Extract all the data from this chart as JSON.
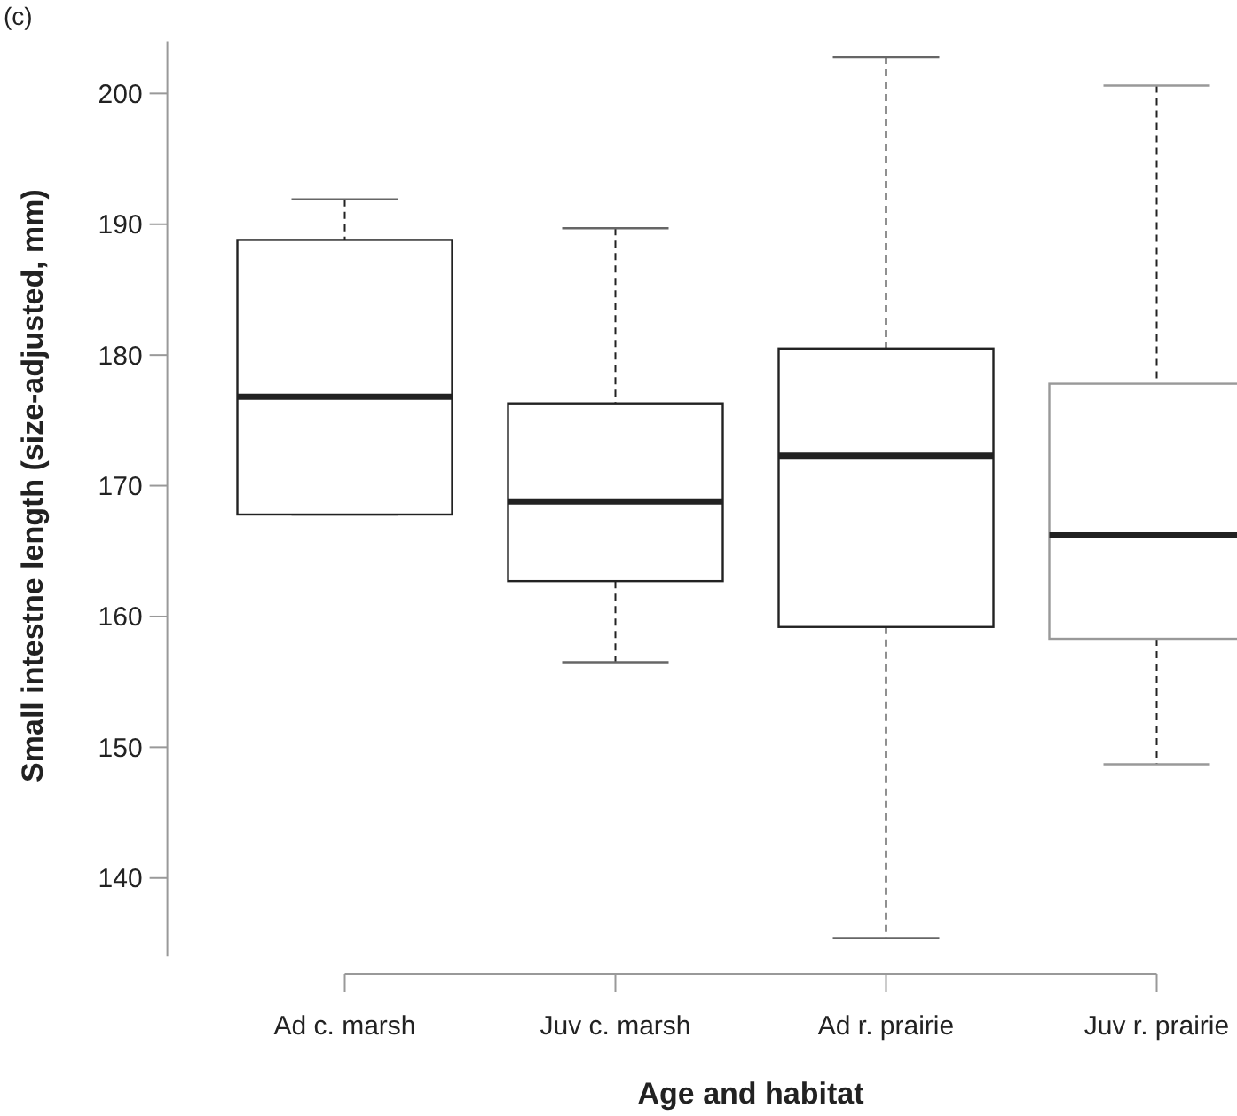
{
  "chart_data": {
    "type": "box",
    "xlabel": "Age and habitat",
    "ylabel": "Small intestne length (size-adjusted, mm)",
    "annotations": [
      "(c)"
    ],
    "categories": [
      "Ad c. marsh",
      "Juv c. marsh",
      "Ad r. prairie",
      "Juv r. prairie"
    ],
    "colors": [
      "#222222",
      "#222222",
      "#222222",
      "#999999"
    ],
    "boxes": [
      {
        "low": 167.8,
        "q1": 167.8,
        "median": 176.8,
        "q3": 188.8,
        "high": 191.9
      },
      {
        "low": 156.5,
        "q1": 162.7,
        "median": 168.8,
        "q3": 176.3,
        "high": 189.7
      },
      {
        "low": 135.4,
        "q1": 159.2,
        "median": 172.3,
        "q3": 180.5,
        "high": 202.8
      },
      {
        "low": 148.7,
        "q1": 158.3,
        "median": 166.2,
        "q3": 177.8,
        "high": 200.6
      }
    ],
    "ylim": [
      134,
      204
    ],
    "yticks": [
      140,
      150,
      160,
      170,
      180,
      190,
      200
    ],
    "grid": false
  }
}
